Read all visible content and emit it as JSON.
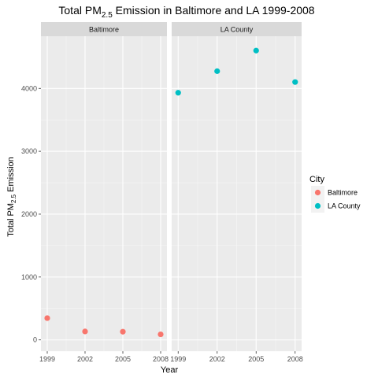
{
  "chart_data": {
    "type": "scatter",
    "title": {
      "prefix": "Total PM",
      "sub": "2.5",
      "suffix": " Emission in Baltimore and LA 1999-2008"
    },
    "xlabel": "Year",
    "ylabel": {
      "prefix": "Total PM",
      "sub": "2.5",
      "suffix": " Emission"
    },
    "x_ticks": [
      "1999",
      "2002",
      "2005",
      "2008"
    ],
    "y_ticks": [
      0,
      1000,
      2000,
      3000,
      4000
    ],
    "ylim": [
      -180,
      4830
    ],
    "xlim": [
      1998.5,
      2008.5
    ],
    "grid": true,
    "legend": {
      "title": "City",
      "placement": "right"
    },
    "facets": [
      {
        "name": "Baltimore",
        "color": "#F8766D",
        "x": [
          1999,
          2002,
          2005,
          2008
        ],
        "y": [
          346.8,
          134.3,
          130.4,
          88.3
        ]
      },
      {
        "name": "LA County",
        "color": "#00BFC4",
        "x": [
          1999,
          2002,
          2005,
          2008
        ],
        "y": [
          3931.1,
          4274.0,
          4601.4,
          4101.3
        ]
      }
    ]
  }
}
